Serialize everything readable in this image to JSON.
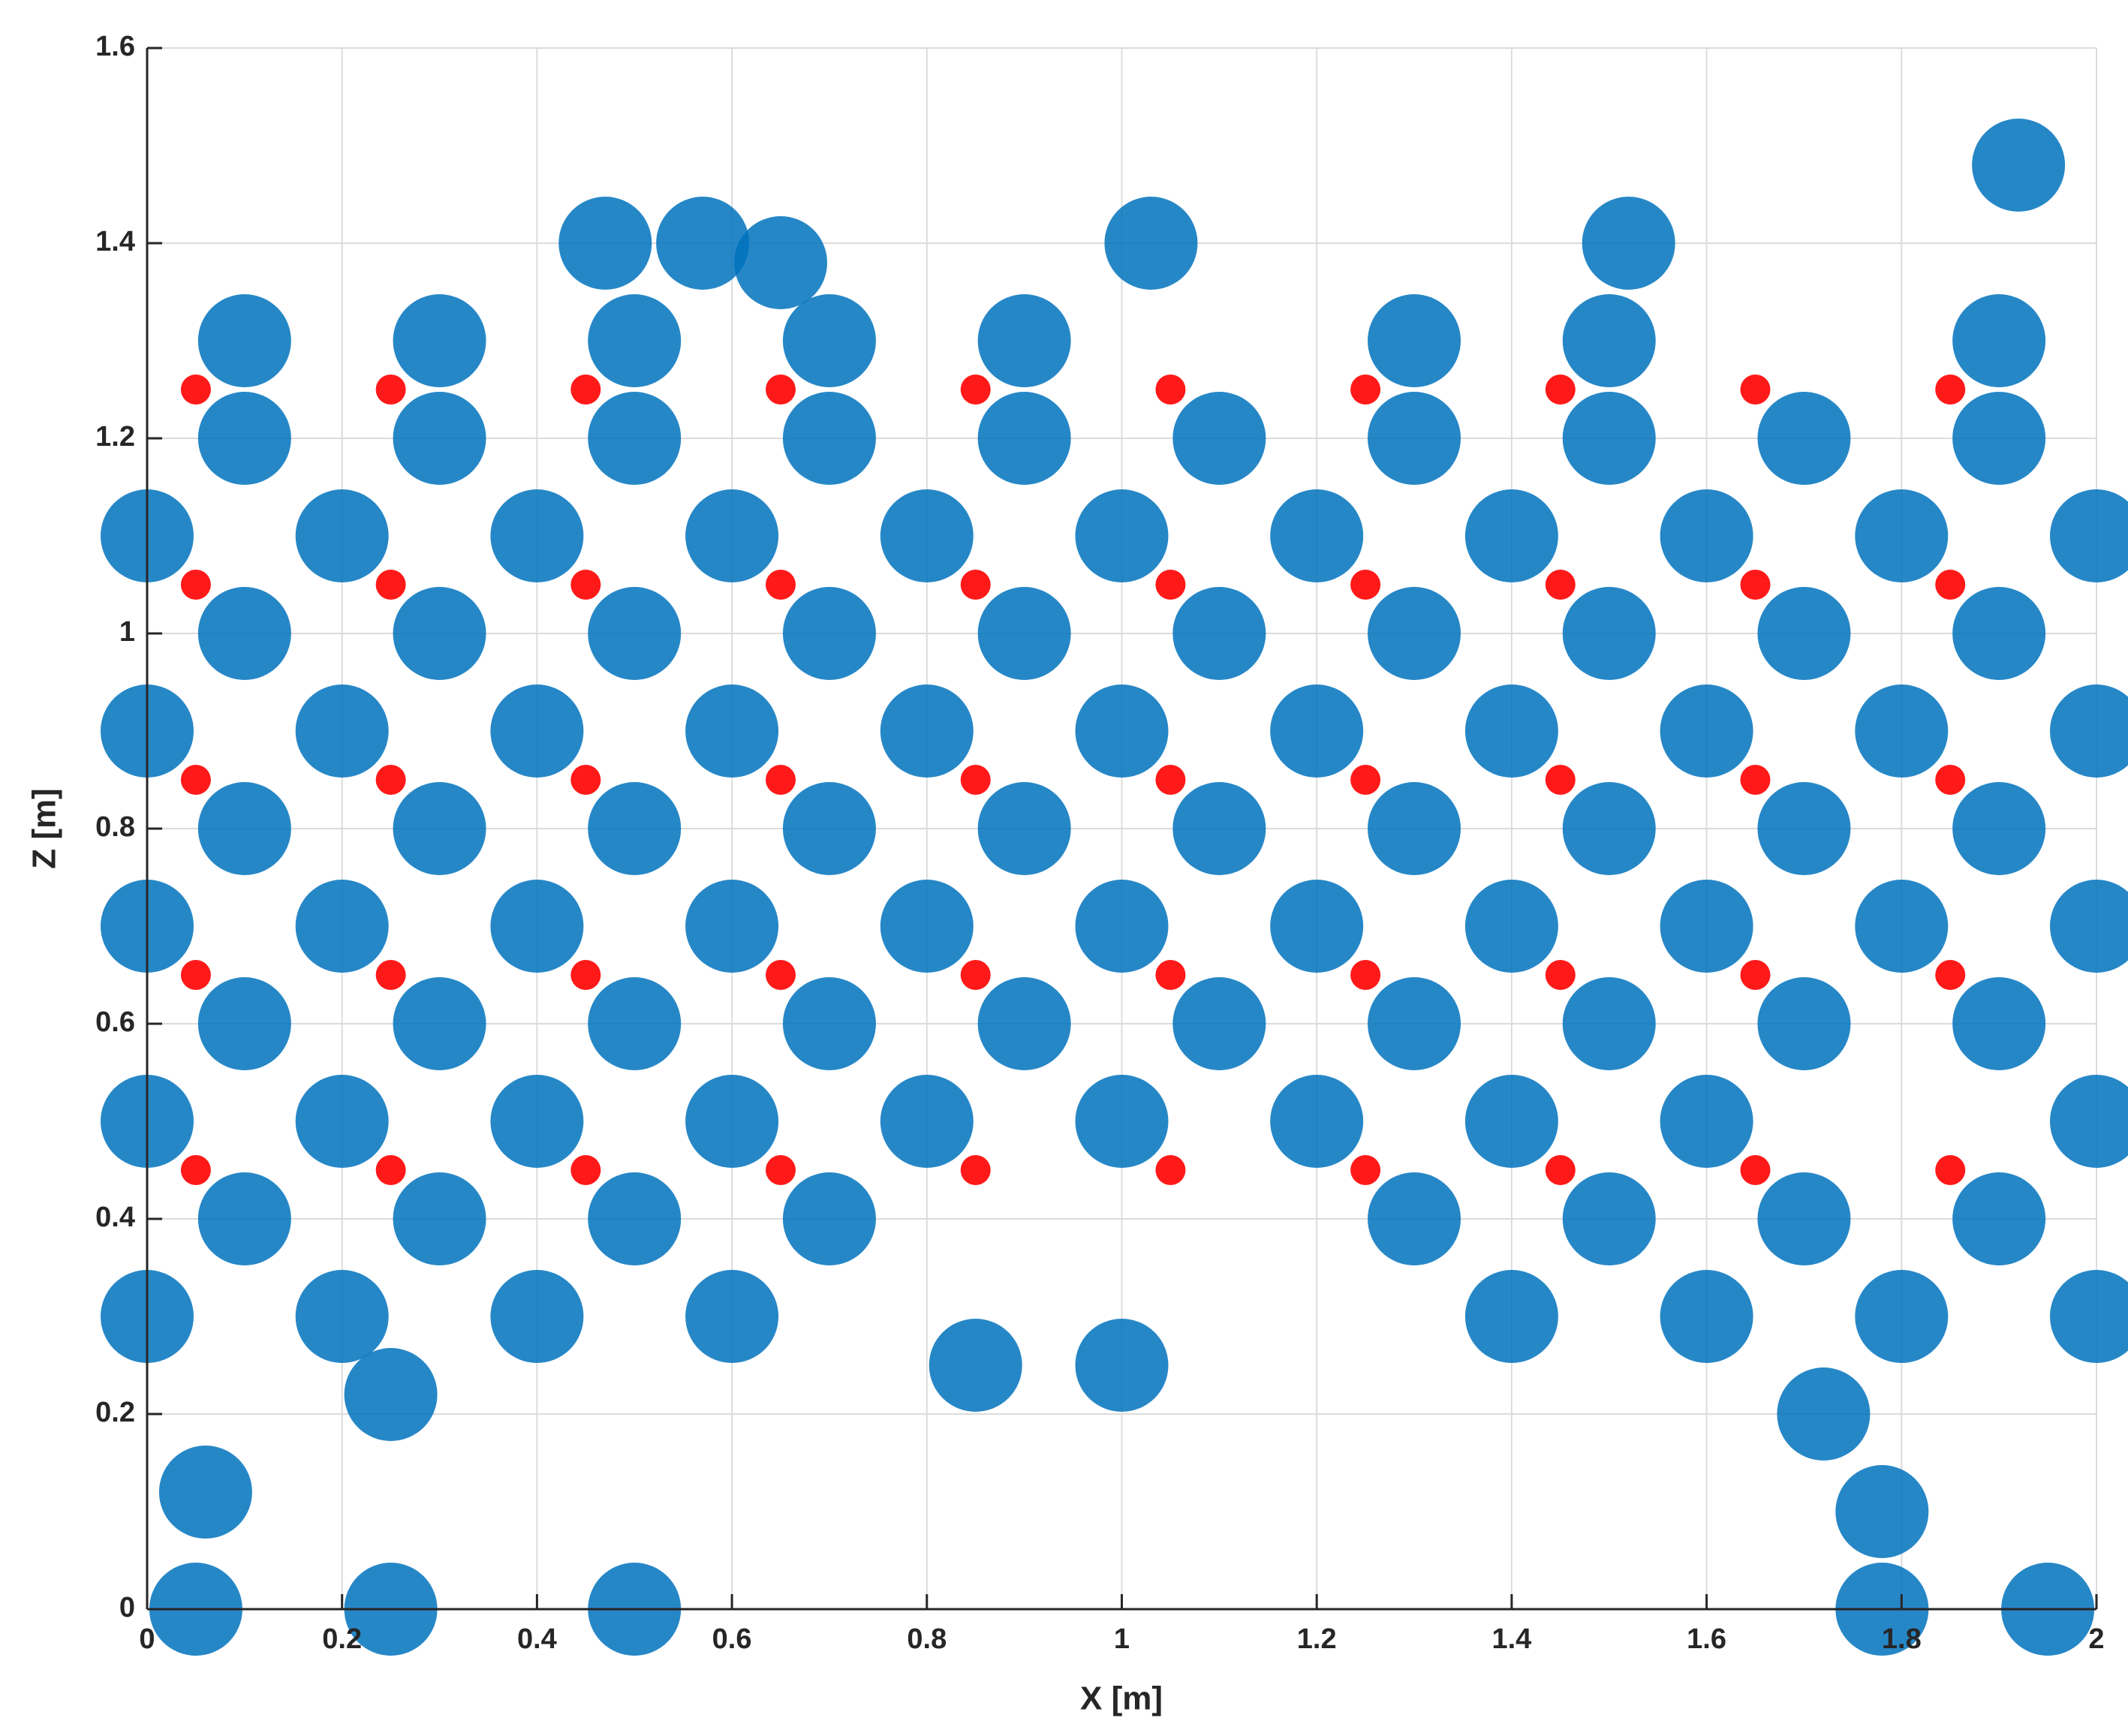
{
  "chart_data": {
    "type": "scatter",
    "x_label": "X [m]",
    "y_label": "Z [m]",
    "xlim": [
      0,
      2
    ],
    "ylim": [
      0,
      1.6
    ],
    "xticks": [
      0,
      0.2,
      0.4,
      0.6,
      0.8,
      1,
      1.2,
      1.4,
      1.6,
      1.8,
      2
    ],
    "yticks": [
      0,
      0.2,
      0.4,
      0.6,
      0.8,
      1,
      1.2,
      1.4,
      1.6
    ],
    "grid": true,
    "series": [
      {
        "color": "#0072bd",
        "x": [
          0,
          0.2,
          0.4,
          0.6,
          1.4,
          1.6,
          1.8,
          2,
          0.1,
          0.3,
          0.5,
          0.7,
          1.3,
          1.5,
          1.7,
          1.9,
          0,
          0.2,
          0.4,
          0.6,
          0.8,
          1,
          1.2,
          1.4,
          1.6,
          2,
          0.1,
          0.3,
          0.5,
          0.7,
          0.9,
          1.1,
          1.3,
          1.5,
          1.7,
          1.9,
          0,
          0.2,
          0.4,
          0.6,
          0.8,
          1,
          1.2,
          1.4,
          1.6,
          1.8,
          2,
          0.1,
          0.3,
          0.5,
          0.7,
          0.9,
          1.1,
          1.3,
          1.5,
          1.7,
          1.9,
          0,
          0.2,
          0.4,
          0.6,
          0.8,
          1,
          1.2,
          1.4,
          1.6,
          1.8,
          2,
          0.1,
          0.3,
          0.5,
          0.7,
          0.9,
          1.1,
          1.3,
          1.5,
          1.7,
          1.9,
          0,
          0.2,
          0.4,
          0.6,
          0.8,
          1,
          1.2,
          1.4,
          1.6,
          1.8,
          2,
          0.1,
          0.3,
          0.5,
          0.7,
          0.9,
          1.1,
          1.3,
          1.5,
          1.7,
          1.9,
          0.1,
          0.3,
          0.5,
          0.7,
          0.9,
          1.3,
          1.5,
          1.9,
          0.47,
          0.57,
          0.65,
          1.52,
          1.92,
          1.03,
          0.05,
          0.25,
          0.5,
          1.78,
          1.95,
          1.78,
          0.06,
          1.72,
          0.25,
          0.85,
          1.0
        ],
        "y": [
          0.3,
          0.3,
          0.3,
          0.3,
          0.3,
          0.3,
          0.3,
          0.3,
          0.4,
          0.4,
          0.4,
          0.4,
          0.4,
          0.4,
          0.4,
          0.4,
          0.5,
          0.5,
          0.5,
          0.5,
          0.5,
          0.5,
          0.5,
          0.5,
          0.5,
          0.5,
          0.6,
          0.6,
          0.6,
          0.6,
          0.6,
          0.6,
          0.6,
          0.6,
          0.6,
          0.6,
          0.7,
          0.7,
          0.7,
          0.7,
          0.7,
          0.7,
          0.7,
          0.7,
          0.7,
          0.7,
          0.7,
          0.8,
          0.8,
          0.8,
          0.8,
          0.8,
          0.8,
          0.8,
          0.8,
          0.8,
          0.8,
          0.9,
          0.9,
          0.9,
          0.9,
          0.9,
          0.9,
          0.9,
          0.9,
          0.9,
          0.9,
          0.9,
          1,
          1,
          1,
          1,
          1,
          1,
          1,
          1,
          1,
          1,
          1.1,
          1.1,
          1.1,
          1.1,
          1.1,
          1.1,
          1.1,
          1.1,
          1.1,
          1.1,
          1.1,
          1.2,
          1.2,
          1.2,
          1.2,
          1.2,
          1.2,
          1.2,
          1.2,
          1.2,
          1.2,
          1.3,
          1.3,
          1.3,
          1.3,
          1.3,
          1.3,
          1.3,
          1.3,
          1.4,
          1.4,
          1.38,
          1.4,
          1.48,
          1.4,
          0,
          0,
          0,
          0,
          0,
          0.1,
          0.12,
          0.2,
          0.22,
          0.25,
          0.25
        ]
      },
      {
        "color": "#ff0000",
        "x": [
          0.05,
          0.25,
          0.45,
          0.65,
          0.85,
          1.05,
          1.25,
          1.45,
          1.65,
          1.85,
          0.05,
          0.25,
          0.45,
          0.65,
          0.85,
          1.05,
          1.25,
          1.45,
          1.65,
          1.85,
          0.05,
          0.25,
          0.45,
          0.65,
          0.85,
          1.05,
          1.25,
          1.45,
          1.65,
          1.85,
          0.05,
          0.25,
          0.45,
          0.65,
          0.85,
          1.05,
          1.25,
          1.45,
          1.65,
          1.85,
          0.05,
          0.25,
          0.45,
          0.65,
          0.85,
          1.05,
          1.25,
          1.45,
          1.65,
          1.85
        ],
        "y": [
          0.45,
          0.45,
          0.45,
          0.45,
          0.45,
          0.45,
          0.45,
          0.45,
          0.45,
          0.45,
          0.65,
          0.65,
          0.65,
          0.65,
          0.65,
          0.65,
          0.65,
          0.65,
          0.65,
          0.65,
          0.85,
          0.85,
          0.85,
          0.85,
          0.85,
          0.85,
          0.85,
          0.85,
          0.85,
          0.85,
          1.05,
          1.05,
          1.05,
          1.05,
          1.05,
          1.05,
          1.05,
          1.05,
          1.05,
          1.05,
          1.25,
          1.25,
          1.25,
          1.25,
          1.25,
          1.25,
          1.25,
          1.25,
          1.25,
          1.25
        ]
      }
    ]
  }
}
